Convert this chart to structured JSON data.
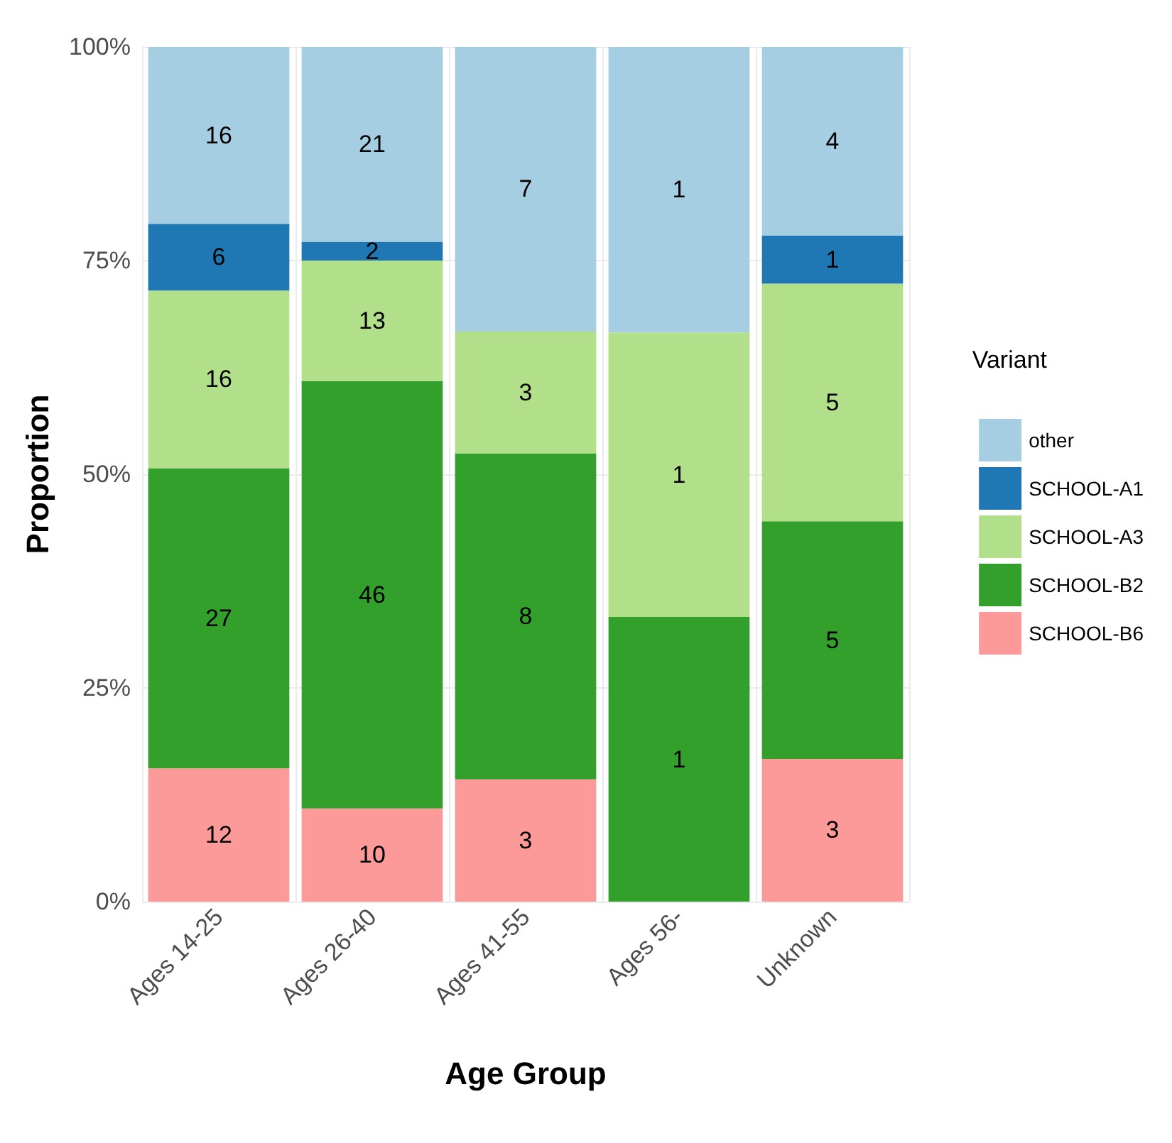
{
  "chart_data": {
    "type": "bar",
    "stacked": true,
    "xlabel": "Age Group",
    "ylabel": "Proportion",
    "legend_title": "Variant",
    "legend": "right",
    "grid": true,
    "categories": [
      "Ages 14-25",
      "Ages 26-40",
      "Ages 41-55",
      "Ages 56-",
      "Unknown"
    ],
    "ylim": [
      0,
      100
    ],
    "yticks": [
      {
        "value": 0,
        "label": "0%"
      },
      {
        "value": 25,
        "label": "25%"
      },
      {
        "value": 50,
        "label": "50%"
      },
      {
        "value": 75,
        "label": "75%"
      },
      {
        "value": 100,
        "label": "100%"
      }
    ],
    "series": [
      {
        "name": "SCHOOL-B6",
        "color": "#fb9a99",
        "values": [
          15.6,
          10.9,
          14.3,
          null,
          16.7
        ]
      },
      {
        "name": "SCHOOL-B2",
        "color": "#33a02c",
        "values": [
          35.1,
          50.0,
          38.1,
          33.3,
          27.8
        ]
      },
      {
        "name": "SCHOOL-A3",
        "color": "#b2df8a",
        "values": [
          20.8,
          14.1,
          14.3,
          33.3,
          27.8
        ]
      },
      {
        "name": "SCHOOL-A1",
        "color": "#1f78b4",
        "values": [
          7.8,
          2.2,
          null,
          null,
          5.6
        ]
      },
      {
        "name": "other",
        "color": "#a6cee3",
        "values": [
          20.7,
          22.8,
          33.3,
          33.4,
          22.1
        ]
      }
    ],
    "annotations": [
      "12",
      "27",
      "16",
      "6",
      "16",
      "10",
      "46",
      "13",
      "2",
      "21",
      "3",
      "8",
      "3",
      "7",
      "1",
      "1",
      "1",
      "3",
      "5",
      "5",
      "1",
      "4"
    ]
  }
}
